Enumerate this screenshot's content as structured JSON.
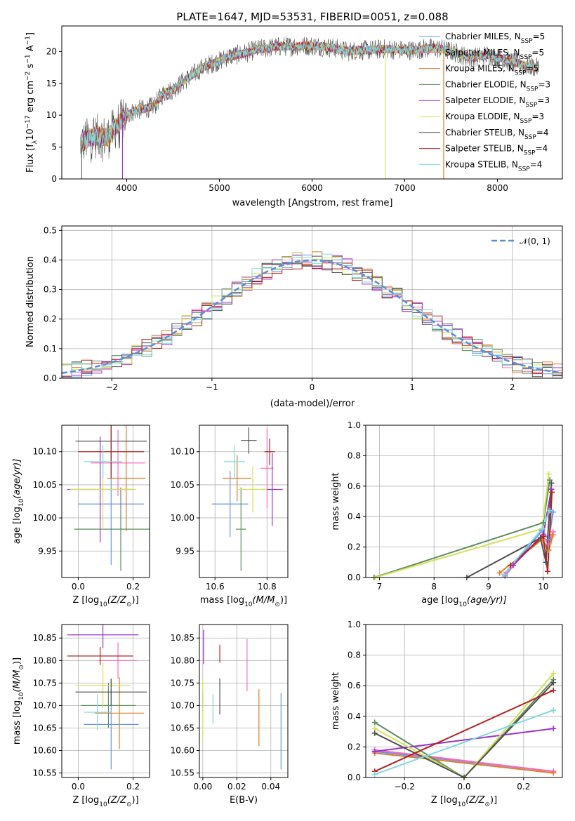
{
  "figure_title": "PLATE=1647, MJD=53531, FIBERID=0051, z=0.088",
  "models": [
    {
      "label": "Chabrier MILES, N",
      "sub": "SSP",
      "n": "=5",
      "color": "#6495ed"
    },
    {
      "label": "Salpeter MILES, N",
      "sub": "SSP",
      "n": "=5",
      "color": "#ff69b4"
    },
    {
      "label": "Kroupa MILES, N",
      "sub": "SSP",
      "n": "=5",
      "color": "#e07b28"
    },
    {
      "label": "Chabrier ELODIE, N",
      "sub": "SSP",
      "n": "=3",
      "color": "#5f8f5f"
    },
    {
      "label": "Salpeter ELODIE, N",
      "sub": "SSP",
      "n": "=3",
      "color": "#9932cc"
    },
    {
      "label": "Kroupa ELODIE, N",
      "sub": "SSP",
      "n": "=3",
      "color": "#d4e157"
    },
    {
      "label": "Chabrier STELIB, N",
      "sub": "SSP",
      "n": "=4",
      "color": "#505050"
    },
    {
      "label": "Salpeter STELIB, N",
      "sub": "SSP",
      "n": "=4",
      "color": "#b22222"
    },
    {
      "label": "Kroupa STELIB, N",
      "sub": "SSP",
      "n": "=4",
      "color": "#80d8e0"
    }
  ],
  "chart_data": [
    {
      "type": "line",
      "panel": "spectrum",
      "xlabel": "wavelength [Angstrom, rest frame]",
      "ylabel_main": "Flux [f",
      "ylabel_sub": "λ",
      "ylabel_rest": "10",
      "ylabel_exp": "−17",
      "ylabel_tail": " erg cm",
      "ylabel_exp2": "−2",
      "ylabel_tail2": " s",
      "ylabel_exp3": "−1",
      "ylabel_tail3": " A",
      "ylabel_exp4": "−1",
      "ylabel_end": "]",
      "xlim": [
        3300,
        8700
      ],
      "ylim": [
        0,
        24
      ],
      "xticks": [
        "4000",
        "5000",
        "6000",
        "7000",
        "8000"
      ],
      "xtick_values": [
        4000,
        5000,
        6000,
        7000,
        8000
      ],
      "yticks": [
        "0",
        "5",
        "10",
        "15",
        "20"
      ],
      "ytick_values": [
        0,
        5,
        10,
        15,
        20
      ],
      "x_range": [
        3500,
        8450
      ],
      "envelope": [
        [
          3500,
          5.5
        ],
        [
          3600,
          6.5
        ],
        [
          3700,
          6.8
        ],
        [
          3800,
          6.5
        ],
        [
          3900,
          8.5
        ],
        [
          4000,
          10.0
        ],
        [
          4100,
          10.8
        ],
        [
          4200,
          11.0
        ],
        [
          4300,
          11.5
        ],
        [
          4400,
          13.5
        ],
        [
          4500,
          14.0
        ],
        [
          4600,
          15.2
        ],
        [
          4700,
          16.2
        ],
        [
          4800,
          17.3
        ],
        [
          4900,
          18.0
        ],
        [
          5000,
          18.5
        ],
        [
          5100,
          19.2
        ],
        [
          5200,
          19.5
        ],
        [
          5300,
          19.8
        ],
        [
          5400,
          20.3
        ],
        [
          5500,
          20.5
        ],
        [
          5600,
          20.7
        ],
        [
          5700,
          20.8
        ],
        [
          5800,
          20.8
        ],
        [
          5900,
          20.9
        ],
        [
          6000,
          20.9
        ],
        [
          6100,
          20.8
        ],
        [
          6200,
          20.6
        ],
        [
          6300,
          20.3
        ],
        [
          6400,
          20.0
        ],
        [
          6500,
          20.2
        ],
        [
          6600,
          20.2
        ],
        [
          6700,
          20.3
        ],
        [
          6800,
          20.4
        ],
        [
          6900,
          20.3
        ],
        [
          7000,
          20.2
        ],
        [
          7100,
          20.2
        ],
        [
          7200,
          20.4
        ],
        [
          7300,
          20.5
        ],
        [
          7400,
          20.4
        ],
        [
          7500,
          20.0
        ],
        [
          7600,
          19.5
        ],
        [
          7700,
          19.0
        ],
        [
          7800,
          19.2
        ],
        [
          7900,
          19.5
        ],
        [
          8000,
          19.0
        ],
        [
          8100,
          18.6
        ],
        [
          8200,
          18.2
        ],
        [
          8300,
          17.8
        ],
        [
          8450,
          17.4
        ]
      ]
    },
    {
      "type": "bar",
      "panel": "residual_histogram",
      "xlabel": "(data-model)/error",
      "ylabel": "Normed distribution",
      "xlim": [
        -2.5,
        2.5
      ],
      "ylim": [
        0,
        0.515
      ],
      "xticks": [
        "−2",
        "−1",
        "0",
        "1",
        "2"
      ],
      "xtick_values": [
        -2,
        -1,
        0,
        1,
        2
      ],
      "yticks": [
        "0.0",
        "0.1",
        "0.2",
        "0.3",
        "0.4",
        "0.5"
      ],
      "ytick_values": [
        0,
        0.1,
        0.2,
        0.3,
        0.4,
        0.5
      ],
      "bin_width": 0.1,
      "bin_start": -2.5,
      "legend": "𝒩(0, 1)",
      "curve": "gaussian mean 0 sigma 1",
      "grid": true,
      "legend_placement": "top-right"
    },
    {
      "type": "scatter",
      "panel": "age_vs_Z",
      "xlabel": "Z [log",
      "xlabel_sub": "10",
      "xlabel_rest": "(Z/Z",
      "xlabel_sub2": "⊙",
      "xlabel_end": ")]",
      "ylabel": "age  [log",
      "ylabel_sub": "10",
      "ylabel_rest": "(age/yr)]",
      "xlim": [
        -0.06,
        0.26
      ],
      "ylim": [
        9.91,
        10.14
      ],
      "xticks": [
        "0.0",
        "0.2"
      ],
      "xtick_values": [
        0,
        0.2
      ],
      "yticks": [
        "9.95",
        "10.00",
        "10.05",
        "10.10"
      ],
      "ytick_values": [
        9.95,
        10.0,
        10.05,
        10.1
      ],
      "points": [
        {
          "x": 0.12,
          "xerr": 0.12,
          "y": 10.021,
          "yerr": 0.092
        },
        {
          "x": 0.145,
          "xerr": 0.1,
          "y": 10.083,
          "yerr": 0.05
        },
        {
          "x": 0.175,
          "xerr": 0.07,
          "y": 10.06,
          "yerr": 0.08
        },
        {
          "x": 0.155,
          "xerr": 0.17,
          "y": 9.983,
          "yerr": 0.063
        },
        {
          "x": 0.08,
          "xerr": 0.12,
          "y": 10.043,
          "yerr": 0.08
        },
        {
          "x": 0.09,
          "xerr": 0.12,
          "y": 10.043,
          "yerr": 0.06
        },
        {
          "x": 0.12,
          "xerr": 0.13,
          "y": 10.116,
          "yerr": 0.052
        },
        {
          "x": 0.12,
          "xerr": 0.12,
          "y": 10.1,
          "yerr": 0.04
        },
        {
          "x": 0.09,
          "xerr": 0.07,
          "y": 10.085,
          "yerr": 0.025
        }
      ]
    },
    {
      "type": "scatter",
      "panel": "age_vs_mass",
      "xlabel": "mass [log",
      "xlabel_sub": "10",
      "xlabel_rest": "(M/M",
      "xlabel_sub2": "⊙",
      "xlabel_end": ")]",
      "xlim": [
        10.54,
        10.88
      ],
      "ylim": [
        9.91,
        10.14
      ],
      "xticks": [
        "10.6",
        "10.8"
      ],
      "xtick_values": [
        10.6,
        10.8
      ],
      "yticks": [
        "9.95",
        "10.00",
        "10.05",
        "10.10"
      ],
      "ytick_values": [
        9.95,
        10.0,
        10.05,
        10.1
      ],
      "points": [
        {
          "x": 10.658,
          "xerr": 0.07,
          "y": 10.021,
          "yerr": 0.05
        },
        {
          "x": 10.8,
          "xerr": 0.025,
          "y": 10.075,
          "yerr": 0.06
        },
        {
          "x": 10.685,
          "xerr": 0.055,
          "y": 10.06,
          "yerr": 0.035
        },
        {
          "x": 10.7,
          "xerr": 0.02,
          "y": 9.983,
          "yerr": 0.063
        },
        {
          "x": 10.82,
          "xerr": 0.04,
          "y": 10.043,
          "yerr": 0.055
        },
        {
          "x": 10.745,
          "xerr": 0.055,
          "y": 10.043,
          "yerr": 0.035
        },
        {
          "x": 10.73,
          "xerr": 0.03,
          "y": 10.117,
          "yerr": 0.02
        },
        {
          "x": 10.81,
          "xerr": 0.02,
          "y": 10.1,
          "yerr": 0.02
        },
        {
          "x": 10.675,
          "xerr": 0.04,
          "y": 10.085,
          "yerr": 0.025
        }
      ]
    },
    {
      "type": "line",
      "panel": "massweight_vs_age",
      "xlabel": "age  [log",
      "xlabel_sub": "10",
      "xlabel_rest": "(age/yr)]",
      "ylabel": "mass weight",
      "xlim": [
        6.75,
        10.35
      ],
      "ylim": [
        0,
        1
      ],
      "xticks": [
        "7",
        "8",
        "9",
        "10"
      ],
      "xtick_values": [
        7,
        8,
        9,
        10
      ],
      "yticks": [
        "0.0",
        "0.2",
        "0.4",
        "0.6",
        "0.8",
        "1.0"
      ],
      "ytick_values": [
        0,
        0.2,
        0.4,
        0.6,
        0.8,
        1.0
      ],
      "grid": true,
      "series": [
        {
          "x": [
            9.3,
            9.98,
            10.1,
            10.18
          ],
          "y": [
            0.01,
            0.31,
            0.25,
            0.43
          ]
        },
        {
          "x": [
            9.3,
            9.98,
            10.1,
            10.18
          ],
          "y": [
            0.02,
            0.28,
            0.22,
            0.3
          ]
        },
        {
          "x": [
            9.2,
            9.98,
            10.1,
            10.18
          ],
          "y": [
            0.03,
            0.25,
            0.18,
            0.28
          ]
        },
        {
          "x": [
            6.9,
            10.0,
            10.12
          ],
          "y": [
            0.0,
            0.36,
            0.64
          ]
        },
        {
          "x": [
            9.45,
            10.0,
            10.15
          ],
          "y": [
            0.08,
            0.28,
            0.58
          ]
        },
        {
          "x": [
            6.92,
            9.98,
            10.1
          ],
          "y": [
            0.0,
            0.32,
            0.68
          ]
        },
        {
          "x": [
            8.6,
            9.95,
            10.05,
            10.15
          ],
          "y": [
            0.0,
            0.26,
            0.1,
            0.62
          ]
        },
        {
          "x": [
            9.4,
            10.0,
            10.08,
            10.16
          ],
          "y": [
            0.08,
            0.27,
            0.04,
            0.56
          ]
        },
        {
          "x": [
            9.28,
            9.98,
            10.12
          ],
          "y": [
            0.02,
            0.32,
            0.44
          ]
        }
      ]
    },
    {
      "type": "scatter",
      "panel": "mass_vs_Z",
      "xlabel": "Z [log",
      "xlabel_sub": "10",
      "xlabel_rest": "(Z/Z",
      "xlabel_sub2": "⊙",
      "xlabel_end": ")]",
      "ylabel": "mass [log",
      "ylabel_sub": "10",
      "ylabel_rest": "(M/M",
      "ylabel_sub2": "⊙",
      "ylabel_end": ")]",
      "xlim": [
        -0.06,
        0.26
      ],
      "ylim": [
        10.54,
        10.88
      ],
      "xticks": [
        "0.0",
        "0.2"
      ],
      "xtick_values": [
        0,
        0.2
      ],
      "yticks": [
        "10.55",
        "10.60",
        "10.65",
        "10.70",
        "10.75",
        "10.80",
        "10.85"
      ],
      "ytick_values": [
        10.55,
        10.6,
        10.65,
        10.7,
        10.75,
        10.8,
        10.85
      ],
      "points": [
        {
          "x": 0.12,
          "xerr": 0.1,
          "y": 10.658,
          "yerr": 0.1
        },
        {
          "x": 0.145,
          "xerr": 0.07,
          "y": 10.8,
          "yerr": 0.04
        },
        {
          "x": 0.15,
          "xerr": 0.09,
          "y": 10.683,
          "yerr": 0.08
        },
        {
          "x": 0.11,
          "xerr": 0.1,
          "y": 10.7,
          "yerr": 0.05
        },
        {
          "x": 0.09,
          "xerr": 0.13,
          "y": 10.857,
          "yerr": 0.03
        },
        {
          "x": 0.09,
          "xerr": 0.1,
          "y": 10.745,
          "yerr": 0.05
        },
        {
          "x": 0.12,
          "xerr": 0.13,
          "y": 10.73,
          "yerr": 0.03
        },
        {
          "x": 0.08,
          "xerr": 0.12,
          "y": 10.81,
          "yerr": 0.02
        },
        {
          "x": 0.07,
          "xerr": 0.05,
          "y": 10.685,
          "yerr": 0.04
        }
      ]
    },
    {
      "type": "scatter",
      "panel": "mass_vs_ebv",
      "xlabel": "E(B-V)",
      "xlim": [
        -0.002,
        0.05
      ],
      "ylim": [
        10.54,
        10.88
      ],
      "xticks": [
        "0.00",
        "0.02",
        "0.04"
      ],
      "xtick_values": [
        0,
        0.02,
        0.04
      ],
      "yticks": [
        "10.55",
        "10.60",
        "10.65",
        "10.70",
        "10.75",
        "10.80",
        "10.85"
      ],
      "ytick_values": [
        10.55,
        10.6,
        10.65,
        10.7,
        10.75,
        10.8,
        10.85
      ],
      "points": [
        {
          "x": 0.046,
          "y": 10.643,
          "yerr": 0.085
        },
        {
          "x": 0.026,
          "y": 10.79,
          "yerr": 0.058
        },
        {
          "x": 0.033,
          "y": 10.673,
          "yerr": 0.063
        },
        {
          "x": 0.0,
          "y": 10.708,
          "yerr": 0.02
        },
        {
          "x": 0.0005,
          "y": 10.83,
          "yerr": 0.038
        },
        {
          "x": 0.0,
          "y": 10.69,
          "yerr": 0.065
        },
        {
          "x": 0.01,
          "y": 10.72,
          "yerr": 0.04
        },
        {
          "x": 0.01,
          "y": 10.815,
          "yerr": 0.02
        },
        {
          "x": 0.006,
          "y": 10.692,
          "yerr": 0.033
        }
      ]
    },
    {
      "type": "line",
      "panel": "massweight_vs_Z",
      "xlabel": "Z [log",
      "xlabel_sub": "10",
      "xlabel_rest": "(Z/Z",
      "xlabel_sub2": "⊙",
      "xlabel_end": ")]",
      "ylabel": "mass weight",
      "xlim": [
        -0.33,
        0.33
      ],
      "ylim": [
        0,
        1
      ],
      "xticks": [
        "−0.2",
        "0.0",
        "0.2"
      ],
      "xtick_values": [
        -0.2,
        0,
        0.2
      ],
      "yticks": [
        "0.0",
        "0.2",
        "0.4",
        "0.6",
        "0.8",
        "1.0"
      ],
      "ytick_values": [
        0,
        0.2,
        0.4,
        0.6,
        0.8,
        1.0
      ],
      "grid": true,
      "series": [
        {
          "x": [
            -0.3,
            0.3
          ],
          "y": [
            0.17,
            0.04
          ]
        },
        {
          "x": [
            -0.3,
            0.3
          ],
          "y": [
            0.18,
            0.04
          ]
        },
        {
          "x": [
            -0.3,
            0.3
          ],
          "y": [
            0.16,
            0.03
          ]
        },
        {
          "x": [
            -0.3,
            0.0,
            0.3
          ],
          "y": [
            0.36,
            0.0,
            0.64
          ]
        },
        {
          "x": [
            -0.3,
            0.3
          ],
          "y": [
            0.17,
            0.32
          ]
        },
        {
          "x": [
            -0.3,
            0.0,
            0.3
          ],
          "y": [
            0.32,
            0.0,
            0.68
          ]
        },
        {
          "x": [
            -0.3,
            0.0,
            0.3
          ],
          "y": [
            0.29,
            0.0,
            0.62
          ]
        },
        {
          "x": [
            -0.3,
            0.3
          ],
          "y": [
            0.04,
            0.57
          ]
        },
        {
          "x": [
            -0.3,
            0.3
          ],
          "y": [
            0.02,
            0.44
          ]
        }
      ]
    }
  ]
}
